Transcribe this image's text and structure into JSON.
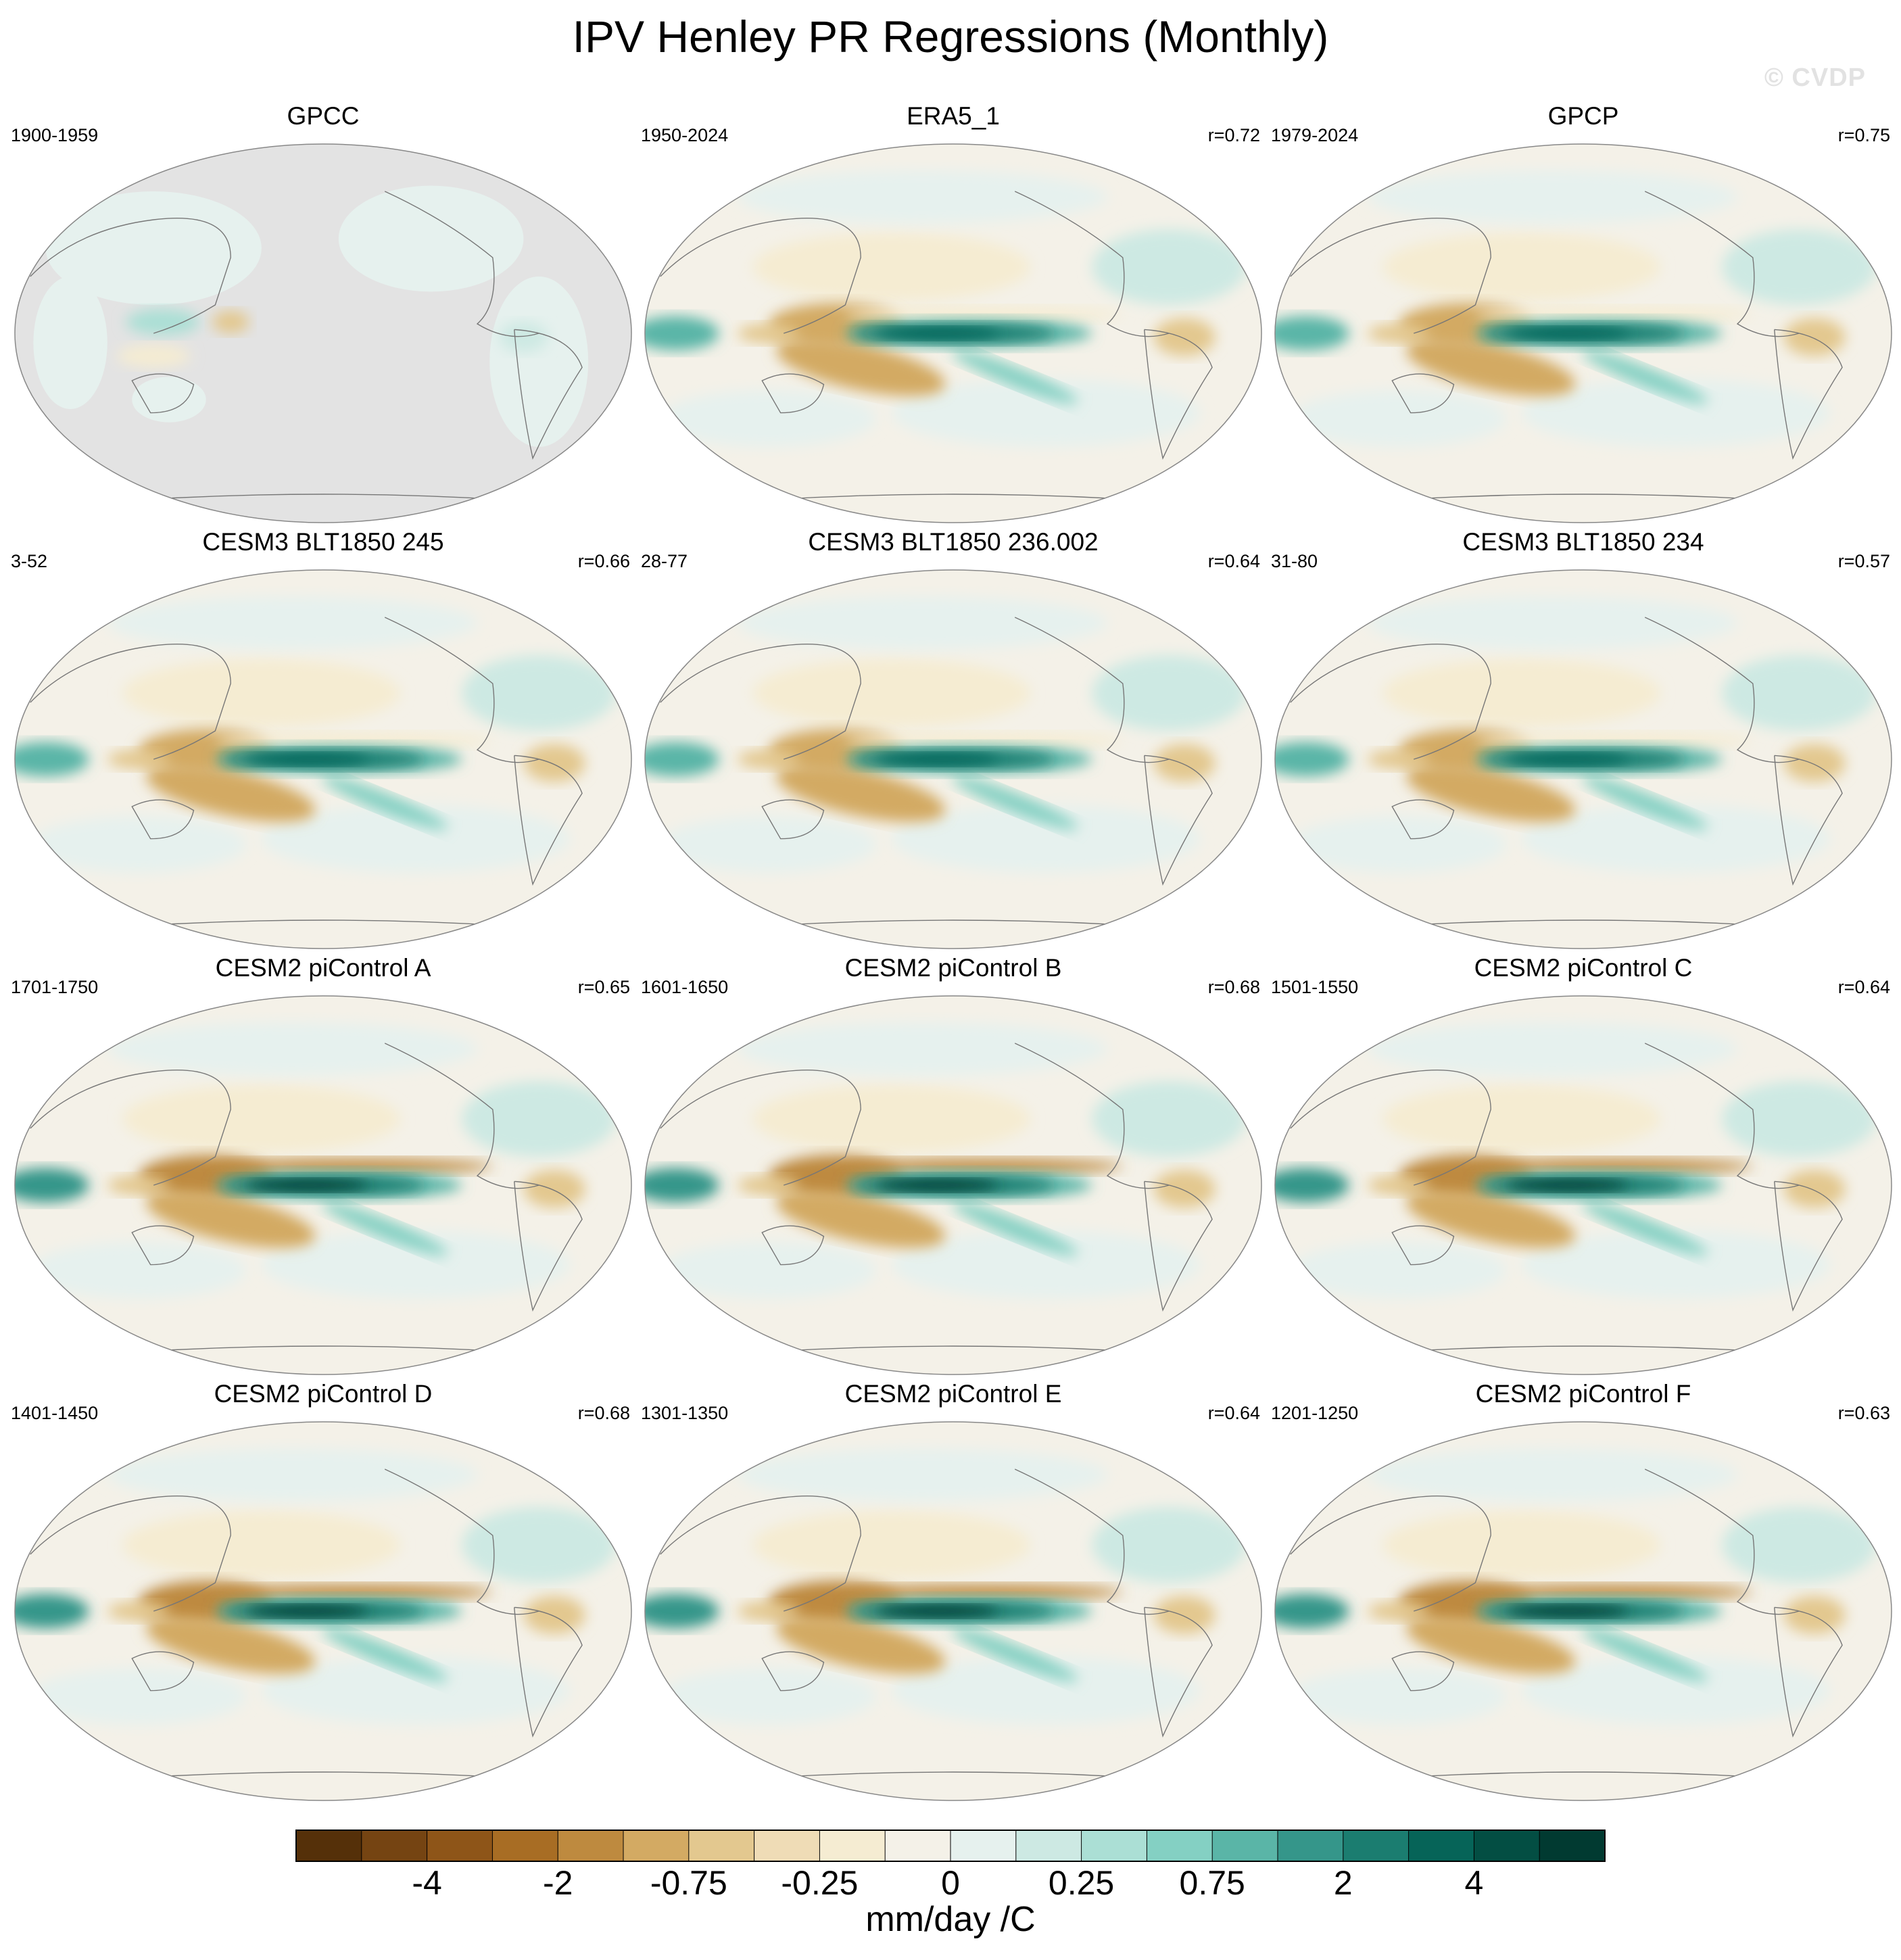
{
  "title": "IPV Henley PR Regressions (Monthly)",
  "watermark": "© CVDP",
  "chart_data": {
    "type": "heatmap",
    "projection": "robinson",
    "panels": [
      {
        "name": "GPCC",
        "period": "1900-1959",
        "r": ""
      },
      {
        "name": "ERA5_1",
        "period": "1950-2024",
        "r": "r=0.72"
      },
      {
        "name": "GPCP",
        "period": "1979-2024",
        "r": "r=0.75"
      },
      {
        "name": "CESM3 BLT1850 245",
        "period": "3-52",
        "r": "r=0.66"
      },
      {
        "name": "CESM3 BLT1850 236.002",
        "period": "28-77",
        "r": "r=0.64"
      },
      {
        "name": "CESM3 BLT1850 234",
        "period": "31-80",
        "r": "r=0.57"
      },
      {
        "name": "CESM2 piControl A",
        "period": "1701-1750",
        "r": "r=0.65"
      },
      {
        "name": "CESM2 piControl B",
        "period": "1601-1650",
        "r": "r=0.68"
      },
      {
        "name": "CESM2 piControl C",
        "period": "1501-1550",
        "r": "r=0.64"
      },
      {
        "name": "CESM2 piControl D",
        "period": "1401-1450",
        "r": "r=0.68"
      },
      {
        "name": "CESM2 piControl E",
        "period": "1301-1350",
        "r": "r=0.64"
      },
      {
        "name": "CESM2 piControl F",
        "period": "1201-1250",
        "r": "r=0.63"
      }
    ],
    "colorbar": {
      "unit": "mm/day /C",
      "tick_labels": [
        "-4",
        "-2",
        "-0.75",
        "-0.25",
        "0",
        "0.25",
        "0.75",
        "2",
        "4"
      ],
      "colors": [
        "#553009",
        "#754412",
        "#8e5518",
        "#a86d24",
        "#be8a3f",
        "#d3aa63",
        "#e3c88f",
        "#efdcb6",
        "#f5ecd2",
        "#f4f1e8",
        "#e6f1ee",
        "#cde9e3",
        "#abdfd5",
        "#84d0c3",
        "#5ab5a7",
        "#35968a",
        "#1b7d70",
        "#066458",
        "#034e43",
        "#013a31"
      ]
    }
  }
}
